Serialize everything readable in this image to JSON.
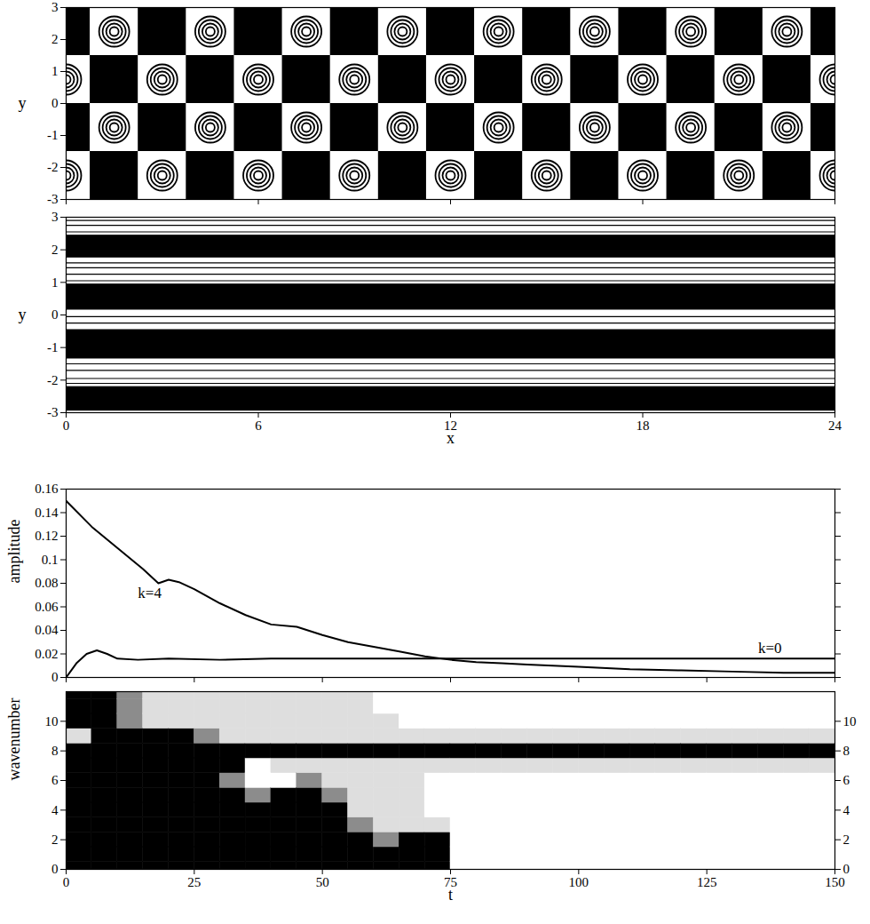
{
  "chart_data": [
    {
      "type": "vortices",
      "y_label": "y",
      "xlim": [
        0,
        24
      ],
      "xticks": [
        0,
        6,
        12,
        18,
        24
      ],
      "ylim": [
        -3,
        3
      ],
      "yticks": [
        -3,
        -2,
        -1,
        0,
        1,
        2,
        3
      ],
      "tick_labels": "y",
      "cell_size": 1.5,
      "vortices": [
        {
          "x": 1.5,
          "y": 2.25
        },
        {
          "x": 4.5,
          "y": 2.25
        },
        {
          "x": 7.5,
          "y": 2.25
        },
        {
          "x": 10.5,
          "y": 2.25
        },
        {
          "x": 13.5,
          "y": 2.25
        },
        {
          "x": 16.5,
          "y": 2.25
        },
        {
          "x": 19.5,
          "y": 2.25
        },
        {
          "x": 22.5,
          "y": 2.25
        },
        {
          "x": 0,
          "y": 0.75
        },
        {
          "x": 3,
          "y": 0.75
        },
        {
          "x": 6,
          "y": 0.75
        },
        {
          "x": 9,
          "y": 0.75
        },
        {
          "x": 12,
          "y": 0.75
        },
        {
          "x": 15,
          "y": 0.75
        },
        {
          "x": 18,
          "y": 0.75
        },
        {
          "x": 21,
          "y": 0.75
        },
        {
          "x": 24,
          "y": 0.75
        },
        {
          "x": 1.5,
          "y": -0.75
        },
        {
          "x": 4.5,
          "y": -0.75
        },
        {
          "x": 7.5,
          "y": -0.75
        },
        {
          "x": 10.5,
          "y": -0.75
        },
        {
          "x": 13.5,
          "y": -0.75
        },
        {
          "x": 16.5,
          "y": -0.75
        },
        {
          "x": 19.5,
          "y": -0.75
        },
        {
          "x": 22.5,
          "y": -0.75
        },
        {
          "x": 0,
          "y": -2.25
        },
        {
          "x": 3,
          "y": -2.25
        },
        {
          "x": 6,
          "y": -2.25
        },
        {
          "x": 9,
          "y": -2.25
        },
        {
          "x": 12,
          "y": -2.25
        },
        {
          "x": 15,
          "y": -2.25
        },
        {
          "x": 18,
          "y": -2.25
        },
        {
          "x": 21,
          "y": -2.25
        },
        {
          "x": 24,
          "y": -2.25
        }
      ]
    },
    {
      "type": "bands",
      "x_label": "x",
      "y_label": "y",
      "xlim": [
        0,
        24
      ],
      "xticks": [
        0,
        6,
        12,
        18,
        24
      ],
      "ylim": [
        -3,
        3
      ],
      "yticks": [
        -3,
        -2,
        -1,
        0,
        1,
        2,
        3
      ],
      "bands": [
        {
          "y1": 1.75,
          "y2": 2.45
        },
        {
          "y1": 0.15,
          "y2": 0.95
        },
        {
          "y1": -1.35,
          "y2": -0.45
        },
        {
          "y1": -2.95,
          "y2": -2.2
        }
      ],
      "contour_lines": [
        2.55,
        2.75,
        2.9,
        1.6,
        1.45,
        1.25,
        1.05,
        -0.05,
        -0.25,
        -1.5,
        -1.7,
        -1.95,
        -2.1
      ]
    },
    {
      "type": "line",
      "y_label": "amplitude",
      "xlim": [
        0,
        150
      ],
      "xticks": [
        0,
        25,
        50,
        75,
        100,
        125,
        150
      ],
      "ylim": [
        0,
        0.16
      ],
      "yticks": [
        0,
        0.02,
        0.04,
        0.06,
        0.08,
        0.1,
        0.12,
        0.14,
        0.16
      ],
      "tick_labels": "y",
      "series": [
        {
          "name": "k=4",
          "color": "#000000",
          "label_x": 14,
          "label_y": 0.072,
          "x": [
            0,
            5,
            10,
            15,
            18,
            20,
            22,
            25,
            30,
            35,
            40,
            45,
            50,
            55,
            60,
            65,
            70,
            75,
            80,
            85,
            90,
            100,
            110,
            120,
            130,
            140,
            150
          ],
          "values": [
            0.15,
            0.128,
            0.11,
            0.092,
            0.08,
            0.083,
            0.081,
            0.075,
            0.063,
            0.053,
            0.045,
            0.043,
            0.036,
            0.03,
            0.026,
            0.022,
            0.018,
            0.015,
            0.013,
            0.012,
            0.011,
            0.009,
            0.007,
            0.006,
            0.005,
            0.004,
            0.004
          ]
        },
        {
          "name": "k=0",
          "color": "#000000",
          "label_x": 135,
          "label_y": 0.025,
          "x": [
            0,
            2,
            4,
            6,
            8,
            10,
            14,
            20,
            30,
            40,
            50,
            75,
            100,
            125,
            150
          ],
          "values": [
            0,
            0.012,
            0.02,
            0.023,
            0.02,
            0.016,
            0.015,
            0.016,
            0.015,
            0.016,
            0.016,
            0.016,
            0.016,
            0.016,
            0.016
          ]
        }
      ]
    },
    {
      "type": "heatmap",
      "x_label": "t",
      "y_label": "wavenumber",
      "xlim": [
        0,
        150
      ],
      "xticks": [
        0,
        25,
        50,
        75,
        100,
        125,
        150
      ],
      "ylim": [
        0,
        12
      ],
      "yticks": [
        0,
        2,
        4,
        6,
        8,
        10
      ],
      "t_edges": [
        0,
        5,
        10,
        15,
        20,
        25,
        30,
        35,
        40,
        45,
        50,
        55,
        60,
        65,
        70,
        75,
        80,
        85,
        90,
        95,
        100,
        105,
        110,
        115,
        120,
        125,
        130,
        135,
        140,
        145,
        150
      ],
      "wavenumber_edges": [
        -0.5,
        0.5,
        1.5,
        2.5,
        3.5,
        4.5,
        5.5,
        6.5,
        7.5,
        8.5,
        9.5,
        10.5,
        11.5,
        12.5
      ],
      "levels": [
        0,
        1,
        2,
        3
      ],
      "colors": [
        "#ffffff",
        "#dedede",
        "#8c8c8c",
        "#000000"
      ],
      "cells": [
        [
          3,
          3,
          3,
          3,
          3,
          3,
          3,
          3,
          3,
          1,
          3,
          3,
          3
        ],
        [
          3,
          3,
          3,
          3,
          3,
          3,
          3,
          3,
          3,
          3,
          3,
          3,
          3
        ],
        [
          3,
          3,
          3,
          3,
          3,
          3,
          3,
          3,
          3,
          3,
          2,
          2,
          2
        ],
        [
          3,
          3,
          3,
          3,
          3,
          3,
          3,
          3,
          3,
          3,
          1,
          1,
          1
        ],
        [
          3,
          3,
          3,
          3,
          3,
          3,
          3,
          3,
          3,
          3,
          1,
          1,
          1
        ],
        [
          3,
          3,
          3,
          3,
          3,
          3,
          3,
          3,
          3,
          2,
          1,
          1,
          1
        ],
        [
          3,
          3,
          3,
          3,
          3,
          3,
          2,
          3,
          3,
          1,
          1,
          1,
          1
        ],
        [
          3,
          3,
          3,
          3,
          3,
          2,
          0,
          0,
          3,
          1,
          1,
          1,
          1
        ],
        [
          3,
          3,
          3,
          3,
          3,
          3,
          0,
          1,
          3,
          1,
          1,
          1,
          1
        ],
        [
          3,
          3,
          3,
          3,
          3,
          3,
          2,
          1,
          3,
          1,
          1,
          1,
          1
        ],
        [
          3,
          3,
          3,
          3,
          3,
          2,
          1,
          1,
          3,
          1,
          1,
          1,
          1
        ],
        [
          3,
          3,
          3,
          2,
          1,
          1,
          1,
          1,
          3,
          1,
          1,
          1,
          1
        ],
        [
          3,
          3,
          2,
          1,
          1,
          1,
          1,
          1,
          3,
          1,
          1,
          0,
          0
        ],
        [
          3,
          3,
          3,
          1,
          1,
          1,
          1,
          1,
          3,
          1,
          0,
          0,
          0
        ],
        [
          3,
          3,
          3,
          1,
          0,
          0,
          0,
          1,
          3,
          1,
          0,
          0,
          0
        ],
        [
          0,
          0,
          0,
          0,
          0,
          0,
          0,
          1,
          3,
          1,
          0,
          0,
          0
        ],
        [
          0,
          0,
          0,
          0,
          0,
          0,
          0,
          1,
          3,
          1,
          0,
          0,
          0
        ],
        [
          0,
          0,
          0,
          0,
          0,
          0,
          0,
          1,
          3,
          1,
          0,
          0,
          0
        ],
        [
          0,
          0,
          0,
          0,
          0,
          0,
          0,
          1,
          3,
          1,
          0,
          0,
          0
        ],
        [
          0,
          0,
          0,
          0,
          0,
          0,
          0,
          1,
          3,
          1,
          0,
          0,
          0
        ],
        [
          0,
          0,
          0,
          0,
          0,
          0,
          0,
          1,
          3,
          1,
          0,
          0,
          0
        ],
        [
          0,
          0,
          0,
          0,
          0,
          0,
          0,
          1,
          3,
          1,
          0,
          0,
          0
        ],
        [
          0,
          0,
          0,
          0,
          0,
          0,
          0,
          1,
          3,
          1,
          0,
          0,
          0
        ],
        [
          0,
          0,
          0,
          0,
          0,
          0,
          0,
          1,
          3,
          1,
          0,
          0,
          0
        ],
        [
          0,
          0,
          0,
          0,
          0,
          0,
          0,
          1,
          3,
          1,
          0,
          0,
          0
        ],
        [
          0,
          0,
          0,
          0,
          0,
          0,
          0,
          1,
          3,
          1,
          0,
          0,
          0
        ],
        [
          0,
          0,
          0,
          0,
          0,
          0,
          0,
          1,
          3,
          1,
          0,
          0,
          0
        ],
        [
          0,
          0,
          0,
          0,
          0,
          0,
          0,
          1,
          3,
          1,
          0,
          0,
          0
        ],
        [
          0,
          0,
          0,
          0,
          0,
          0,
          0,
          1,
          3,
          1,
          0,
          0,
          0
        ],
        [
          0,
          0,
          0,
          0,
          0,
          0,
          0,
          1,
          3,
          1,
          0,
          0,
          0
        ]
      ]
    }
  ]
}
